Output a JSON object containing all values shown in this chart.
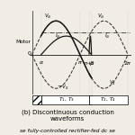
{
  "title": "(b) Discontinuous conduction\nwaveforms",
  "subtitle": "se fully-controlled rectifier-fed dc se",
  "motor_label": "Motor",
  "zero_label": "0",
  "alpha": 0.6,
  "beta": 3.9,
  "pi": 3.14159265,
  "dc_level": 0.65,
  "bg_color": "#f2ede4",
  "line_color": "#1a1a1a",
  "sine_color": "#2a2a2a",
  "current_color": "#1a1a1a",
  "dc_line_color": "#333333"
}
